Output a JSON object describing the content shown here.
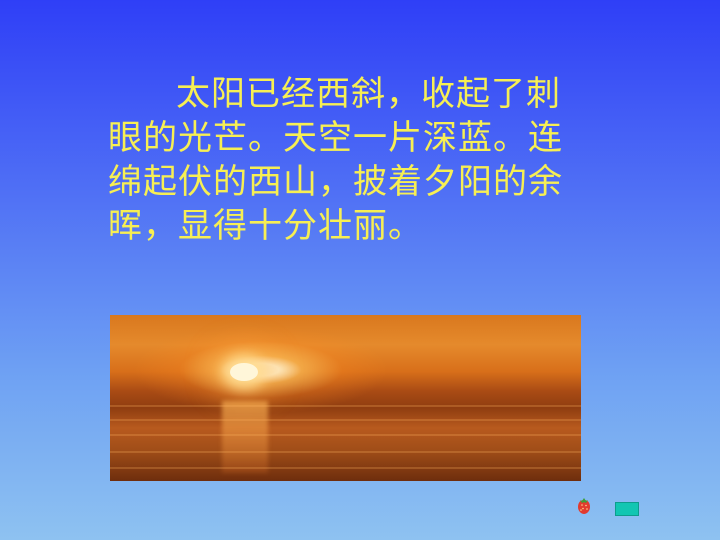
{
  "slide": {
    "passage": "太阳已经西斜，收起了刺眼的光芒。天空一片深蓝。连绵起伏的西山，披着夕阳的余晖，显得十分壮丽。"
  },
  "icons": {
    "strawberry": "strawberry-icon",
    "next": "next-button"
  },
  "colors": {
    "background_top": "#2f3ff7",
    "background_bottom": "#8ec2f1",
    "text": "#f7ef53",
    "button": "#12c6b2"
  }
}
